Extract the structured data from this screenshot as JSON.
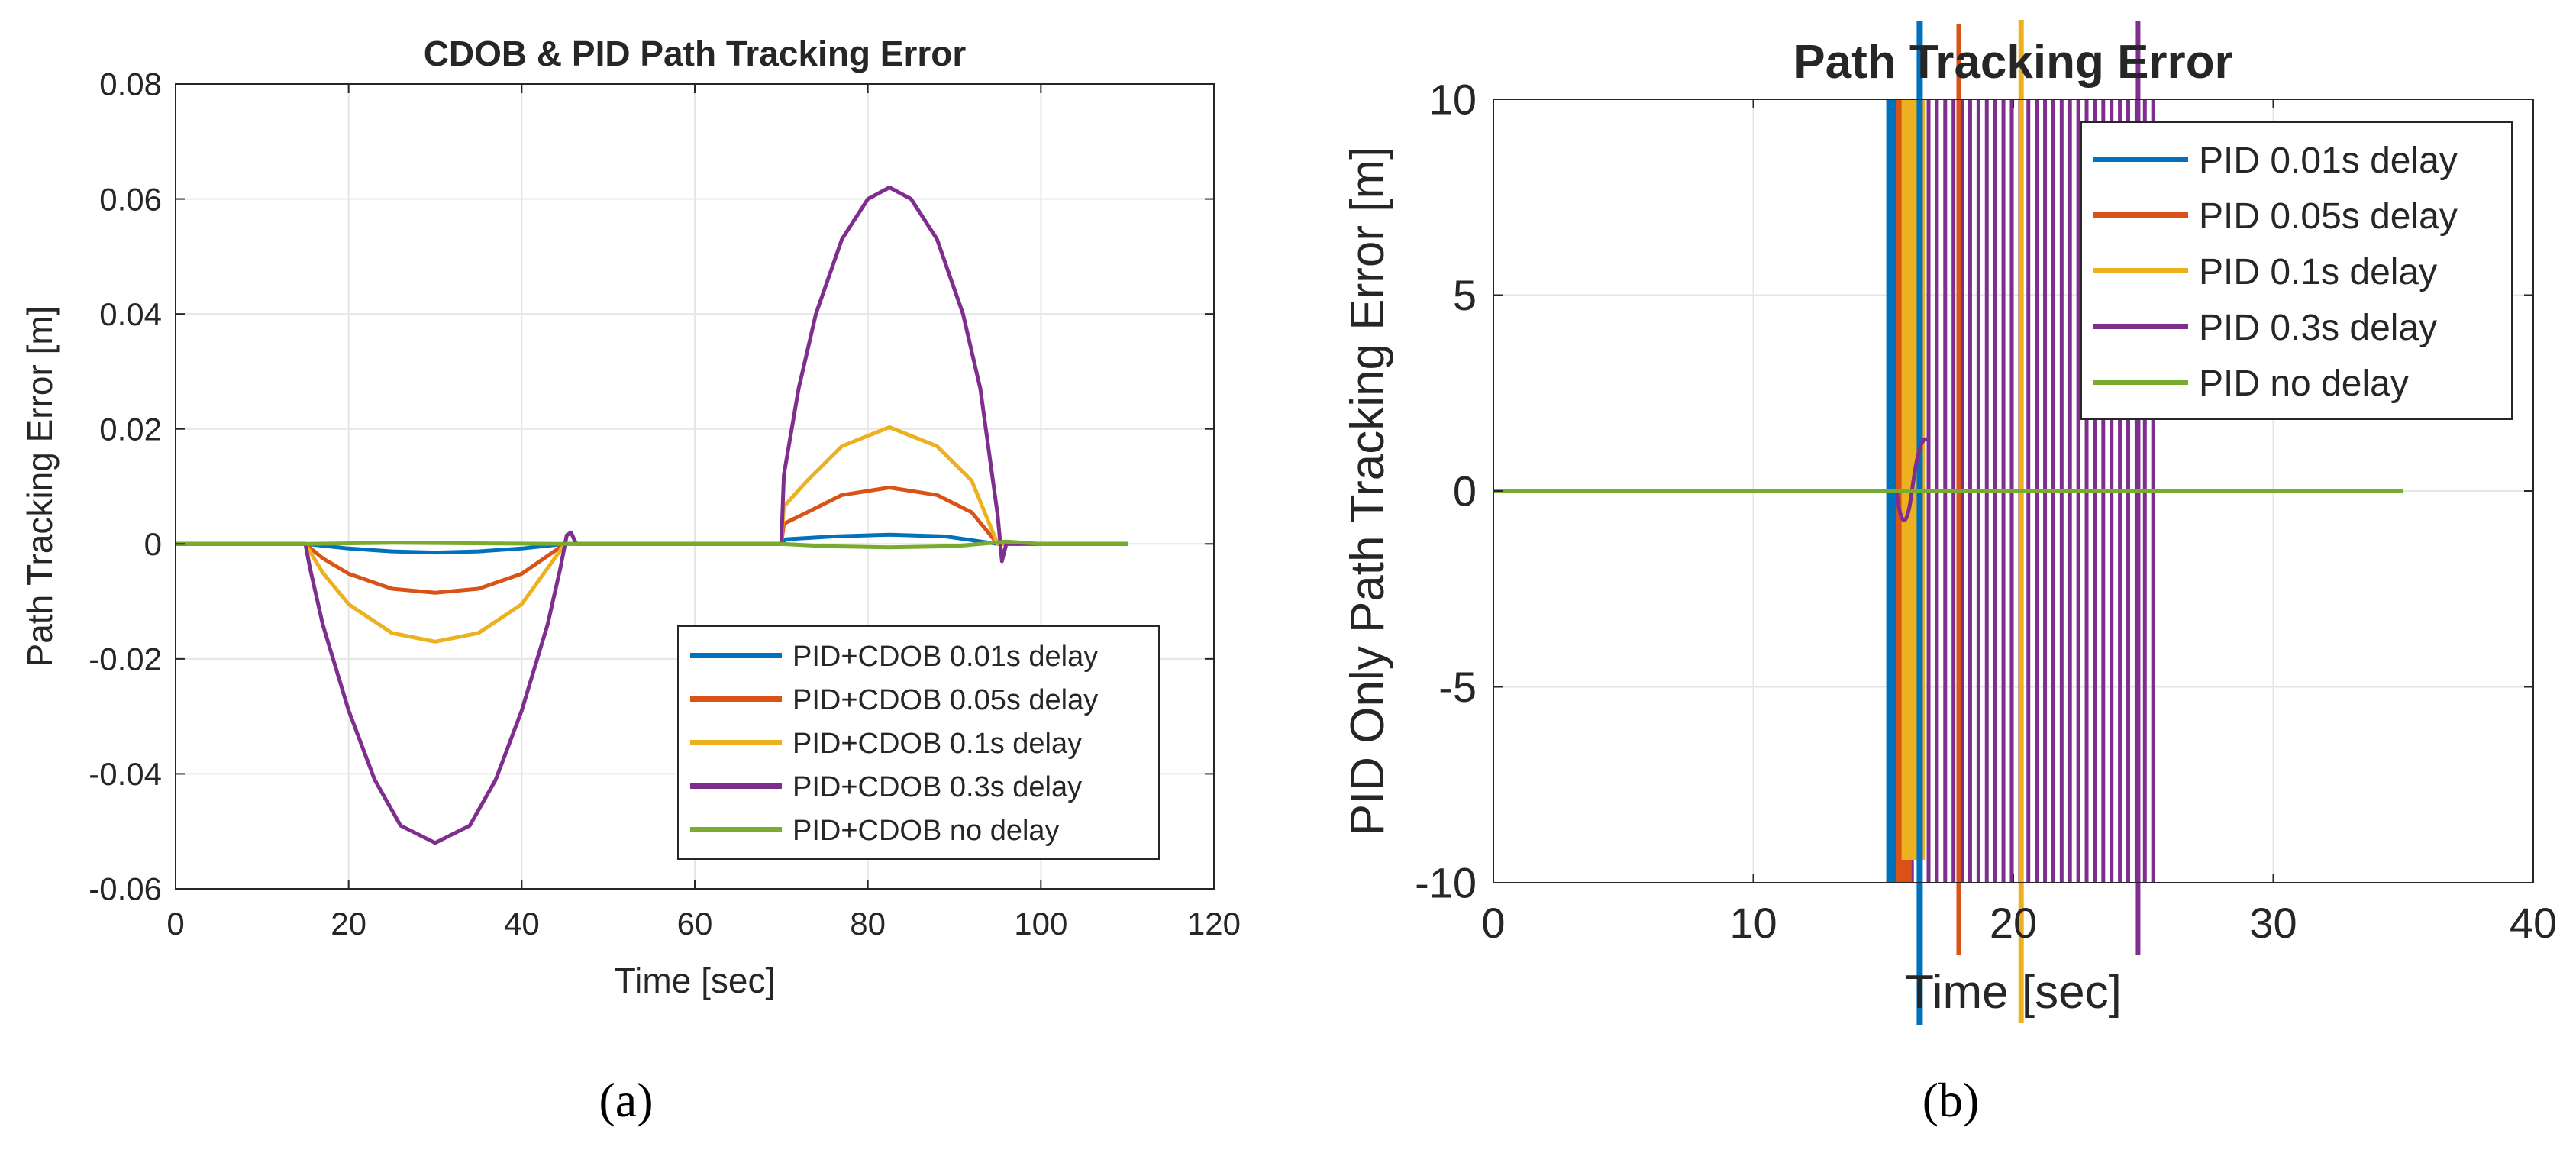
{
  "chart_data": [
    {
      "type": "line",
      "title": "CDOB & PID Path Tracking Error",
      "xlabel": "Time [sec]",
      "ylabel": "Path Tracking Error [m]",
      "xlim": [
        0,
        120
      ],
      "ylim": [
        -0.06,
        0.08
      ],
      "xticks": [
        0,
        20,
        40,
        60,
        80,
        100,
        120
      ],
      "xtick_labels": [
        "0",
        "20",
        "40",
        "60",
        "80",
        "100",
        "120"
      ],
      "yticks": [
        -0.06,
        -0.04,
        -0.02,
        0,
        0.02,
        0.04,
        0.06,
        0.08
      ],
      "ytick_labels": [
        "-0.06",
        "-0.04",
        "-0.02",
        "0",
        "0.02",
        "0.04",
        "0.06",
        "0.08"
      ],
      "grid": true,
      "legend_position": "bottom-right",
      "caption": "(a)",
      "series": [
        {
          "name": "PID+CDOB 0.01s delay",
          "color": "#0072BD",
          "points": [
            [
              0,
              0
            ],
            [
              15,
              0
            ],
            [
              20,
              -0.0008
            ],
            [
              25,
              -0.0013
            ],
            [
              30,
              -0.0015
            ],
            [
              35,
              -0.0013
            ],
            [
              40,
              -0.0008
            ],
            [
              45,
              0
            ],
            [
              70,
              0
            ],
            [
              70.5,
              0.0008
            ],
            [
              76,
              0.0013
            ],
            [
              82.5,
              0.0016
            ],
            [
              89,
              0.0013
            ],
            [
              95,
              0
            ],
            [
              110,
              0
            ]
          ]
        },
        {
          "name": "PID+CDOB 0.05s delay",
          "color": "#D95319",
          "points": [
            [
              0,
              0
            ],
            [
              15,
              0
            ],
            [
              17,
              -0.0025
            ],
            [
              20,
              -0.0052
            ],
            [
              25,
              -0.0078
            ],
            [
              30,
              -0.0085
            ],
            [
              35,
              -0.0078
            ],
            [
              40,
              -0.0052
            ],
            [
              45,
              0
            ],
            [
              70,
              0
            ],
            [
              70.3,
              0.0035
            ],
            [
              73,
              0.0055
            ],
            [
              77,
              0.0085
            ],
            [
              82.5,
              0.0098
            ],
            [
              88,
              0.0085
            ],
            [
              92,
              0.0055
            ],
            [
              95,
              0
            ],
            [
              110,
              0
            ]
          ]
        },
        {
          "name": "PID+CDOB 0.1s delay",
          "color": "#EDB120",
          "points": [
            [
              0,
              0
            ],
            [
              15,
              0
            ],
            [
              17,
              -0.005
            ],
            [
              20,
              -0.0105
            ],
            [
              25,
              -0.0155
            ],
            [
              30,
              -0.017
            ],
            [
              35,
              -0.0155
            ],
            [
              40,
              -0.0105
            ],
            [
              45,
              0
            ],
            [
              70,
              0
            ],
            [
              70.3,
              0.0065
            ],
            [
              73,
              0.011
            ],
            [
              77,
              0.017
            ],
            [
              82.5,
              0.0203
            ],
            [
              88,
              0.017
            ],
            [
              92,
              0.011
            ],
            [
              95,
              0
            ],
            [
              110,
              0
            ]
          ]
        },
        {
          "name": "PID+CDOB 0.3s delay",
          "color": "#7E2F8E",
          "points": [
            [
              0,
              0
            ],
            [
              15,
              0
            ],
            [
              15.5,
              -0.004
            ],
            [
              17,
              -0.014
            ],
            [
              20,
              -0.029
            ],
            [
              23,
              -0.041
            ],
            [
              26,
              -0.049
            ],
            [
              30,
              -0.052
            ],
            [
              34,
              -0.049
            ],
            [
              37,
              -0.041
            ],
            [
              40,
              -0.029
            ],
            [
              43,
              -0.014
            ],
            [
              44.5,
              -0.004
            ],
            [
              45.2,
              0.0015
            ],
            [
              45.7,
              0.002
            ],
            [
              46.3,
              0
            ],
            [
              70,
              0
            ],
            [
              70.3,
              0.012
            ],
            [
              72,
              0.027
            ],
            [
              74,
              0.04
            ],
            [
              77,
              0.053
            ],
            [
              80,
              0.06
            ],
            [
              82.5,
              0.062
            ],
            [
              85,
              0.06
            ],
            [
              88,
              0.053
            ],
            [
              91,
              0.04
            ],
            [
              93,
              0.027
            ],
            [
              95,
              0.005
            ],
            [
              95.5,
              -0.003
            ],
            [
              96,
              0
            ],
            [
              110,
              0
            ]
          ]
        },
        {
          "name": "PID+CDOB no delay",
          "color": "#77AC30",
          "points": [
            [
              0,
              0
            ],
            [
              15,
              0
            ],
            [
              25,
              0.0002
            ],
            [
              45,
              0
            ],
            [
              70,
              0
            ],
            [
              75,
              -0.0004
            ],
            [
              82.5,
              -0.0006
            ],
            [
              90,
              -0.0004
            ],
            [
              96,
              0.0004
            ],
            [
              100,
              0
            ],
            [
              110,
              0
            ]
          ]
        }
      ]
    },
    {
      "type": "line",
      "title": "Path Tracking Error",
      "xlabel": "Time [sec]",
      "ylabel": "PID Only Path Tracking Error [m]",
      "xlim": [
        0,
        40
      ],
      "ylim": [
        -10,
        10
      ],
      "xticks": [
        0,
        10,
        20,
        30,
        40
      ],
      "xtick_labels": [
        "0",
        "10",
        "20",
        "30",
        "40"
      ],
      "yticks": [
        -10,
        -5,
        0,
        5,
        10
      ],
      "ytick_labels": [
        "-10",
        "-5",
        "0",
        "5",
        "10"
      ],
      "grid": true,
      "legend_position": "top-right",
      "caption": "(b)",
      "series": [
        {
          "name": "PID 0.01s delay",
          "color": "#0072BD",
          "behavior": "oscillation 15-16.5 s, unbounded"
        },
        {
          "name": "PID 0.05s delay",
          "color": "#D95319",
          "behavior": "oscillation 15.5-18 s, unbounded"
        },
        {
          "name": "PID 0.1s delay",
          "color": "#EDB120",
          "behavior": "oscillation 15.5-20.5 s, unbounded"
        },
        {
          "name": "PID 0.3s delay",
          "color": "#7E2F8E",
          "behavior": "oscillation 16-25.5 s, unbounded"
        },
        {
          "name": "PID no delay",
          "color": "#77AC30",
          "points": [
            [
              0,
              0
            ],
            [
              35,
              0
            ]
          ]
        }
      ]
    }
  ]
}
